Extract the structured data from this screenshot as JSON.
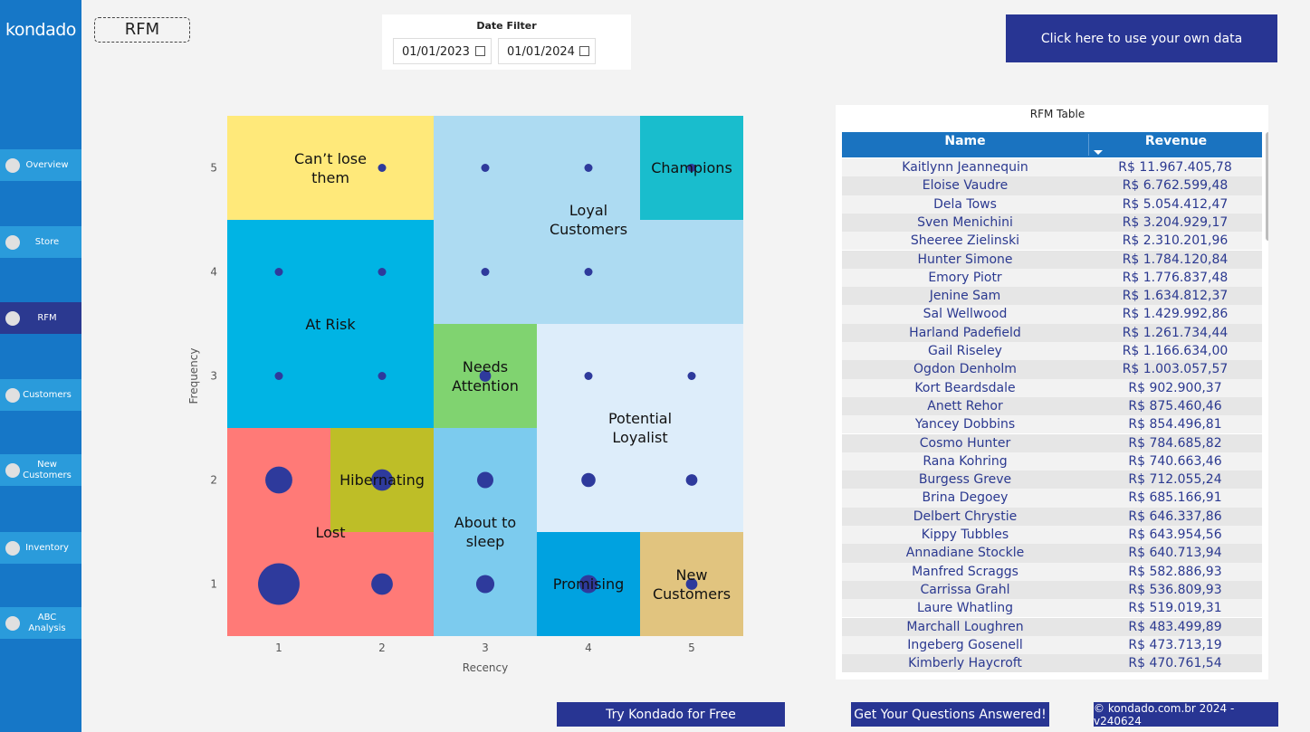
{
  "sidebar": {
    "logo": "kondado",
    "nav": [
      "Overview",
      "Store",
      "RFM",
      "Customers",
      "New Customers",
      "Inventory",
      "ABC Analysis"
    ],
    "active": 2
  },
  "header": {
    "page_title": "RFM",
    "date_filter": {
      "label": "Date Filter",
      "start": "01/01/2023",
      "end": "01/01/2024"
    },
    "button": "Click here to use your own data"
  },
  "chart_data": {
    "type": "scatter",
    "x_label": "Recency",
    "y_label": "Frequency",
    "color": "#2E3A9C",
    "x": [
      2,
      3,
      4,
      5,
      1,
      2,
      3,
      4,
      1,
      2,
      3,
      4,
      5,
      1,
      2,
      3,
      4,
      5,
      1,
      2,
      3,
      4,
      5
    ],
    "values": [
      5,
      5,
      5,
      5,
      4,
      4,
      4,
      4,
      3,
      3,
      3,
      3,
      3,
      2,
      2,
      2,
      2,
      2,
      1,
      1,
      1,
      1,
      1
    ],
    "sizes": [
      1,
      1,
      1,
      1,
      1,
      1,
      1,
      1,
      1,
      1,
      2,
      1,
      1,
      11,
      7,
      4,
      3,
      2,
      26,
      7,
      5,
      5,
      2
    ],
    "xlim": [
      0.5,
      5.5
    ],
    "ylim": [
      0.5,
      5.5
    ],
    "xticks": [
      1,
      2,
      3,
      4,
      5
    ],
    "yticks": [
      1,
      2,
      3,
      4,
      5
    ],
    "segments": [
      {
        "name": "Can’t lose them",
        "x": [
          0.5,
          2.5
        ],
        "y": [
          4.5,
          5.5
        ],
        "color": "#FFE97A"
      },
      {
        "name": "Loyal Customers",
        "x": [
          2.5,
          5.5
        ],
        "y": [
          3.5,
          5.5
        ],
        "color": "#ADDBF2"
      },
      {
        "name": "Champions",
        "x": [
          4.5,
          5.5
        ],
        "y": [
          4.5,
          5.5
        ],
        "color": "#19BDCD"
      },
      {
        "name": "At Risk",
        "x": [
          0.5,
          2.5
        ],
        "y": [
          2.5,
          4.5
        ],
        "color": "#00B4E4"
      },
      {
        "name": "Needs Attention",
        "x": [
          2.5,
          3.5
        ],
        "y": [
          2.5,
          3.5
        ],
        "color": "#80D370"
      },
      {
        "name": "Potential Loyalist",
        "x": [
          3.5,
          5.5
        ],
        "y": [
          1.5,
          3.5
        ],
        "color": "#DDEDFA"
      },
      {
        "name": "Lost",
        "x": [
          0.5,
          2.5
        ],
        "y": [
          0.5,
          2.5
        ],
        "color": "#FF7A77"
      },
      {
        "name": "Hibernating",
        "x": [
          1.5,
          2.5
        ],
        "y": [
          1.5,
          2.5
        ],
        "color": "#BEBE27"
      },
      {
        "name": "About to sleep",
        "x": [
          2.5,
          3.5
        ],
        "y": [
          0.5,
          2.5
        ],
        "color": "#7CCBEE"
      },
      {
        "name": "Promising",
        "x": [
          3.5,
          4.5
        ],
        "y": [
          0.5,
          1.5
        ],
        "color": "#00A2E0"
      },
      {
        "name": "New Customers",
        "x": [
          4.5,
          5.5
        ],
        "y": [
          0.5,
          1.5
        ],
        "color": "#E1C47F"
      }
    ]
  },
  "table": {
    "title": "RFM Table",
    "columns": [
      "Name",
      "Revenue"
    ],
    "rows": [
      [
        "Kaitlynn Jeannequin",
        "R$ 11.967.405,78"
      ],
      [
        "Eloise Vaudre",
        "R$ 6.762.599,48"
      ],
      [
        "Dela Tows",
        "R$ 5.054.412,47"
      ],
      [
        "Sven Menichini",
        "R$ 3.204.929,17"
      ],
      [
        "Sheeree Zielinski",
        "R$ 2.310.201,96"
      ],
      [
        "Hunter Simone",
        "R$ 1.784.120,84"
      ],
      [
        "Emory Piotr",
        "R$ 1.776.837,48"
      ],
      [
        "Jenine Sam",
        "R$ 1.634.812,37"
      ],
      [
        "Sal Wellwood",
        "R$ 1.429.992,86"
      ],
      [
        "Harland Padefield",
        "R$ 1.261.734,44"
      ],
      [
        "Gail Riseley",
        "R$ 1.166.634,00"
      ],
      [
        "Ogdon Denholm",
        "R$ 1.003.057,57"
      ],
      [
        "Kort Beardsdale",
        "R$ 902.900,37"
      ],
      [
        "Anett Rehor",
        "R$ 875.460,46"
      ],
      [
        "Yancey Dobbins",
        "R$ 854.496,81"
      ],
      [
        "Cosmo Hunter",
        "R$ 784.685,82"
      ],
      [
        "Rana Kohring",
        "R$ 740.663,46"
      ],
      [
        "Burgess Greve",
        "R$ 712.055,24"
      ],
      [
        "Brina Degoey",
        "R$ 685.166,91"
      ],
      [
        "Delbert Chrystie",
        "R$ 646.337,86"
      ],
      [
        "Kippy Tubbles",
        "R$ 643.954,56"
      ],
      [
        "Annadiane Stockle",
        "R$ 640.713,94"
      ],
      [
        "Manfred Scraggs",
        "R$ 582.886,93"
      ],
      [
        "Carrissa Grahl",
        "R$ 536.809,93"
      ],
      [
        "Laure Whatling",
        "R$ 519.019,31"
      ],
      [
        "Marchall Loughren",
        "R$ 483.499,89"
      ],
      [
        "Ingeberg Gosenell",
        "R$ 473.713,19"
      ],
      [
        "Kimberly Haycroft",
        "R$ 470.761,54"
      ]
    ]
  },
  "footer": {
    "buttons": [
      "Try Kondado for Free",
      "Get Your Questions Answered!",
      "© kondado.com.br 2024 - v240624"
    ]
  }
}
